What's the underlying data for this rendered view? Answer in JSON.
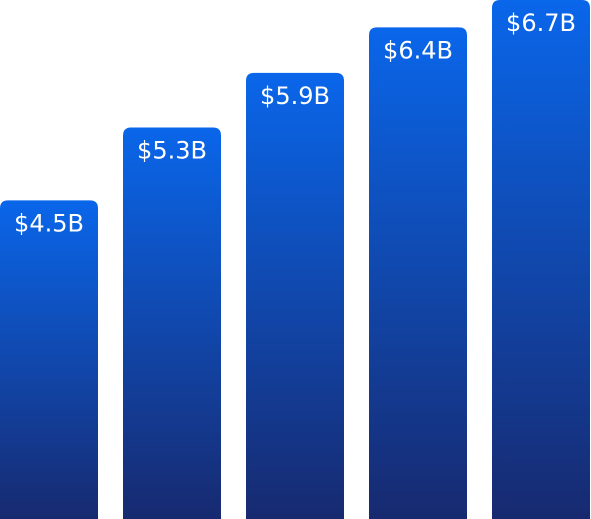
{
  "chart_data": {
    "type": "bar",
    "categories": [
      null,
      null,
      null,
      null,
      null
    ],
    "values": [
      4.5,
      5.3,
      5.9,
      6.4,
      6.7
    ],
    "value_labels": [
      "$4.5B",
      "$5.3B",
      "$5.9B",
      "$6.4B",
      "$6.7B"
    ],
    "color": "#0a64e8",
    "ylim": [
      1,
      6.7
    ]
  }
}
